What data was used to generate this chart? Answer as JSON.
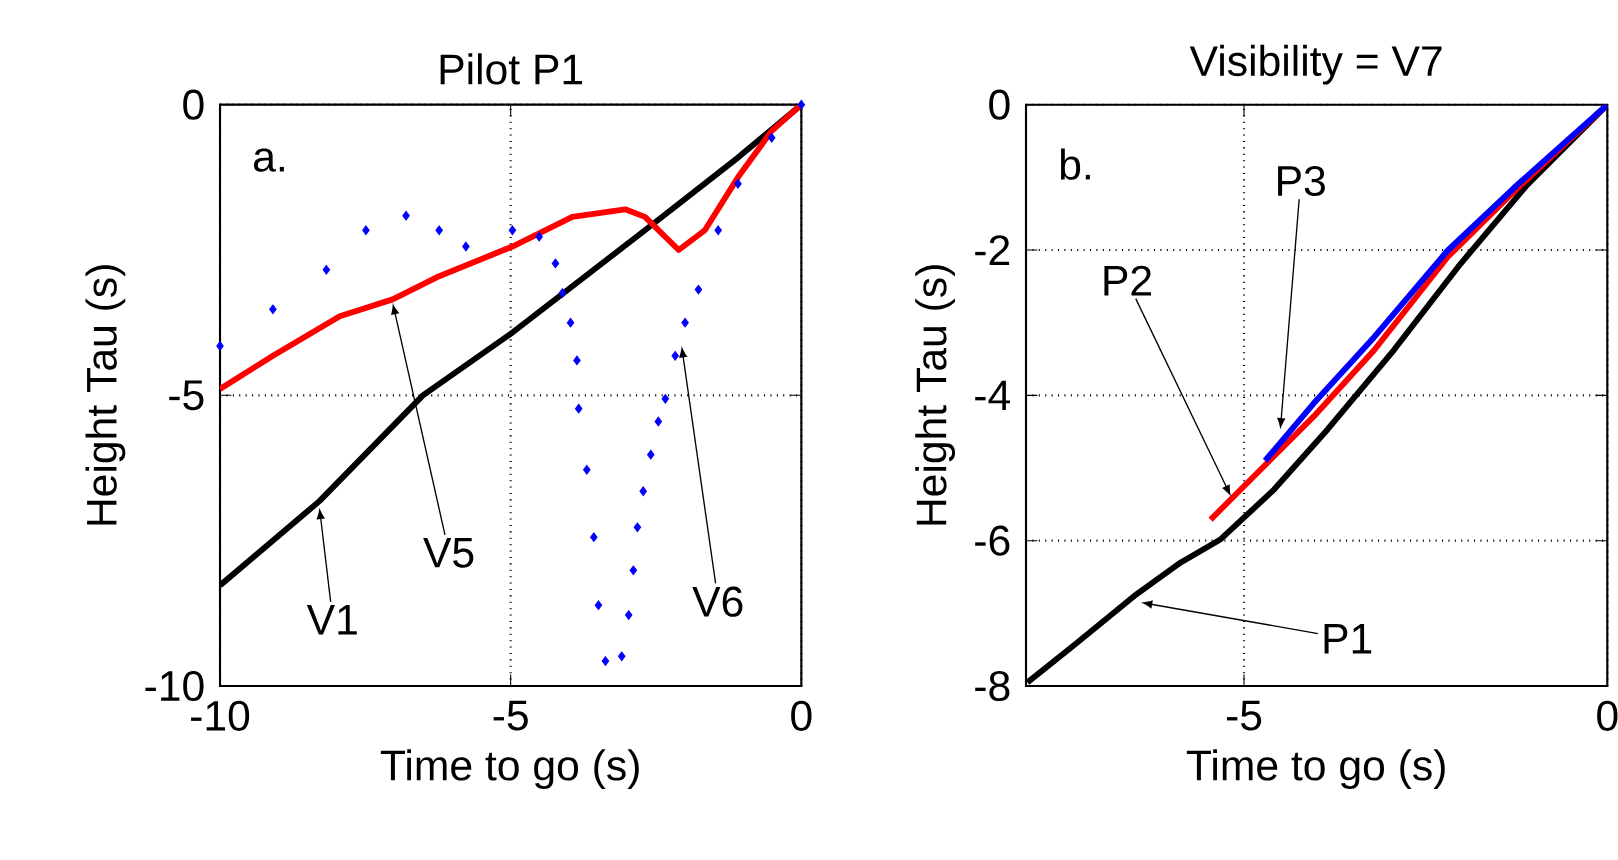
{
  "chart_data": [
    {
      "type": "line",
      "title": "Pilot P1",
      "xlabel": "Time to go (s)",
      "ylabel": "Height Tau (s)",
      "xlim": [
        -10,
        0
      ],
      "ylim": [
        -10,
        0
      ],
      "xticks": [
        -10,
        -5,
        0
      ],
      "yticks": [
        -10,
        -5,
        0
      ],
      "grid": true,
      "line_style": "solid",
      "annotations": [
        "a.",
        {
          "text": "V1",
          "x": -8.29,
          "y": -6.93
        },
        {
          "text": "V5",
          "x": -7.03,
          "y": -3.41
        },
        {
          "text": "V6",
          "x": -2.06,
          "y": -4.15
        }
      ],
      "series": [
        {
          "color": "#000000",
          "x": [
            -10,
            -8.29,
            -6.51,
            -4.97,
            -2.69,
            -1.09,
            0
          ],
          "values": [
            -8.27,
            -6.82,
            -5,
            -3.92,
            -2.16,
            -0.91,
            0
          ]
        },
        {
          "color": "#ff0000",
          "x": [
            -10,
            -9.09,
            -7.94,
            -7.03,
            -6.23,
            -4.97,
            -3.94,
            -3.03,
            -2.69,
            -2.11,
            -1.66,
            -1.09,
            -0.51,
            0
          ],
          "values": [
            -4.89,
            -4.32,
            -3.64,
            -3.35,
            -2.95,
            -2.44,
            -1.93,
            -1.8,
            -1.93,
            -2.5,
            -2.16,
            -1.25,
            -0.45,
            0
          ]
        },
        {
          "color": "#0000ff",
          "type": "scatter",
          "marker": "diamond",
          "x": [
            -10,
            -9.09,
            -8.17,
            -7.49,
            -6.8,
            -6.23,
            -5.77,
            -4.97,
            -4.51,
            -4.23,
            -4.11,
            -3.97,
            -3.86,
            -3.83,
            -3.69,
            -3.57,
            -3.49,
            -3.37,
            -3.09,
            -2.97,
            -2.89,
            -2.82,
            -2.72,
            -2.59,
            -2.46,
            -2.34,
            -2.17,
            -2.0,
            -1.77,
            -1.43,
            -1.09,
            -0.51,
            0
          ],
          "values": [
            -4.15,
            -3.52,
            -2.84,
            -2.16,
            -1.91,
            -2.16,
            -2.44,
            -2.16,
            -2.27,
            -2.73,
            -3.24,
            -3.75,
            -4.4,
            -5.23,
            -6.28,
            -7.44,
            -8.61,
            -9.57,
            -9.49,
            -8.78,
            -8.01,
            -7.27,
            -6.65,
            -6.02,
            -5.45,
            -5.06,
            -4.32,
            -3.75,
            -3.18,
            -2.16,
            -1.36,
            -0.57,
            0
          ]
        }
      ]
    },
    {
      "type": "line",
      "title": "Visibility = V7",
      "xlabel": "Time to go (s)",
      "ylabel": "Height Tau (s)",
      "xlim": [
        -8,
        0
      ],
      "ylim": [
        -8,
        0
      ],
      "xticks": [
        -5,
        0
      ],
      "yticks": [
        -8,
        -6,
        -4,
        -2,
        0
      ],
      "grid": true,
      "line_style": "solid",
      "annotations": [
        "b.",
        {
          "text": "P1",
          "x": -6.42,
          "y": -6.85
        },
        {
          "text": "P2",
          "x": -5.18,
          "y": -5.39
        },
        {
          "text": "P3",
          "x": -4.5,
          "y": -4.47
        }
      ],
      "series": [
        {
          "color": "#000000",
          "x": [
            -7.98,
            -7.34,
            -6.51,
            -5.87,
            -5.32,
            -4.59,
            -3.85,
            -2.94,
            -2.02,
            -1.1,
            0
          ],
          "values": [
            -7.95,
            -7.44,
            -6.76,
            -6.3,
            -5.98,
            -5.3,
            -4.47,
            -3.38,
            -2.19,
            -1.1,
            0
          ]
        },
        {
          "color": "#ff0000",
          "x": [
            -5.46,
            -4.77,
            -4.04,
            -3.21,
            -2.2,
            -1.28,
            0
          ],
          "values": [
            -5.71,
            -5.02,
            -4.29,
            -3.38,
            -2.1,
            -1.19,
            0
          ]
        },
        {
          "color": "#0000ff",
          "x": [
            -4.71,
            -4.04,
            -3.21,
            -2.2,
            -1.28,
            0
          ],
          "values": [
            -4.9,
            -4.11,
            -3.2,
            -2.01,
            -1.14,
            0
          ]
        }
      ]
    }
  ]
}
